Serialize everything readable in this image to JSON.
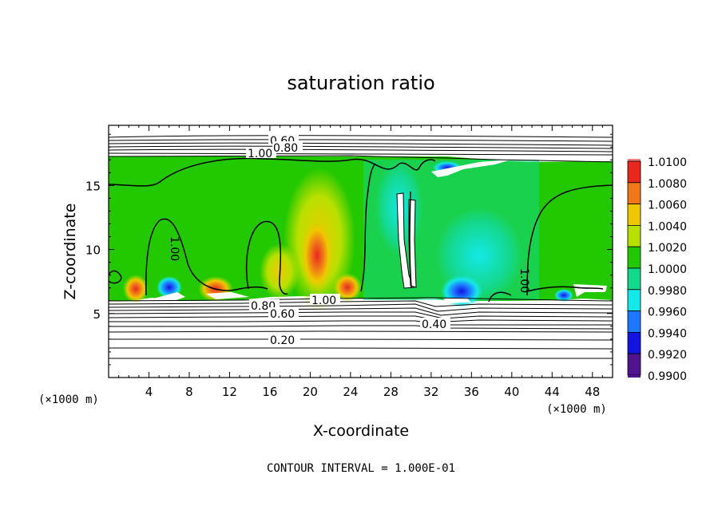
{
  "chart_data": {
    "type": "heatmap",
    "title": "saturation ratio",
    "xlabel": "X-coordinate",
    "ylabel": "Z-coordinate",
    "x_unit_left": "(×1000 m)",
    "x_unit_right": "(×1000 m)",
    "xlim": [
      0,
      50
    ],
    "ylim": [
      0,
      19.7
    ],
    "x_ticks": [
      "4",
      "8",
      "12",
      "16",
      "20",
      "24",
      "28",
      "32",
      "36",
      "40",
      "44",
      "48"
    ],
    "y_ticks": [
      "5",
      "10",
      "15"
    ],
    "colorbar": {
      "labels": [
        "1.0100",
        "1.0080",
        "1.0060",
        "1.0040",
        "1.0020",
        "1.0000",
        "0.9980",
        "0.9960",
        "0.9940",
        "0.9920",
        "0.9900"
      ],
      "colors": [
        "#f08080",
        "#e8281e",
        "#f07818",
        "#f0c800",
        "#b8e000",
        "#22c800",
        "#14d88c",
        "#14e8e8",
        "#1e78ff",
        "#1414e0",
        "#50148c"
      ]
    },
    "contour_labels": [
      "0.60",
      "1.00",
      "0.80",
      "1.00",
      "1.00",
      "1.00",
      "0.80",
      "0.60",
      "0.40",
      "0.20"
    ],
    "footer": "CONTOUR INTERVAL = 1.000E-01"
  }
}
